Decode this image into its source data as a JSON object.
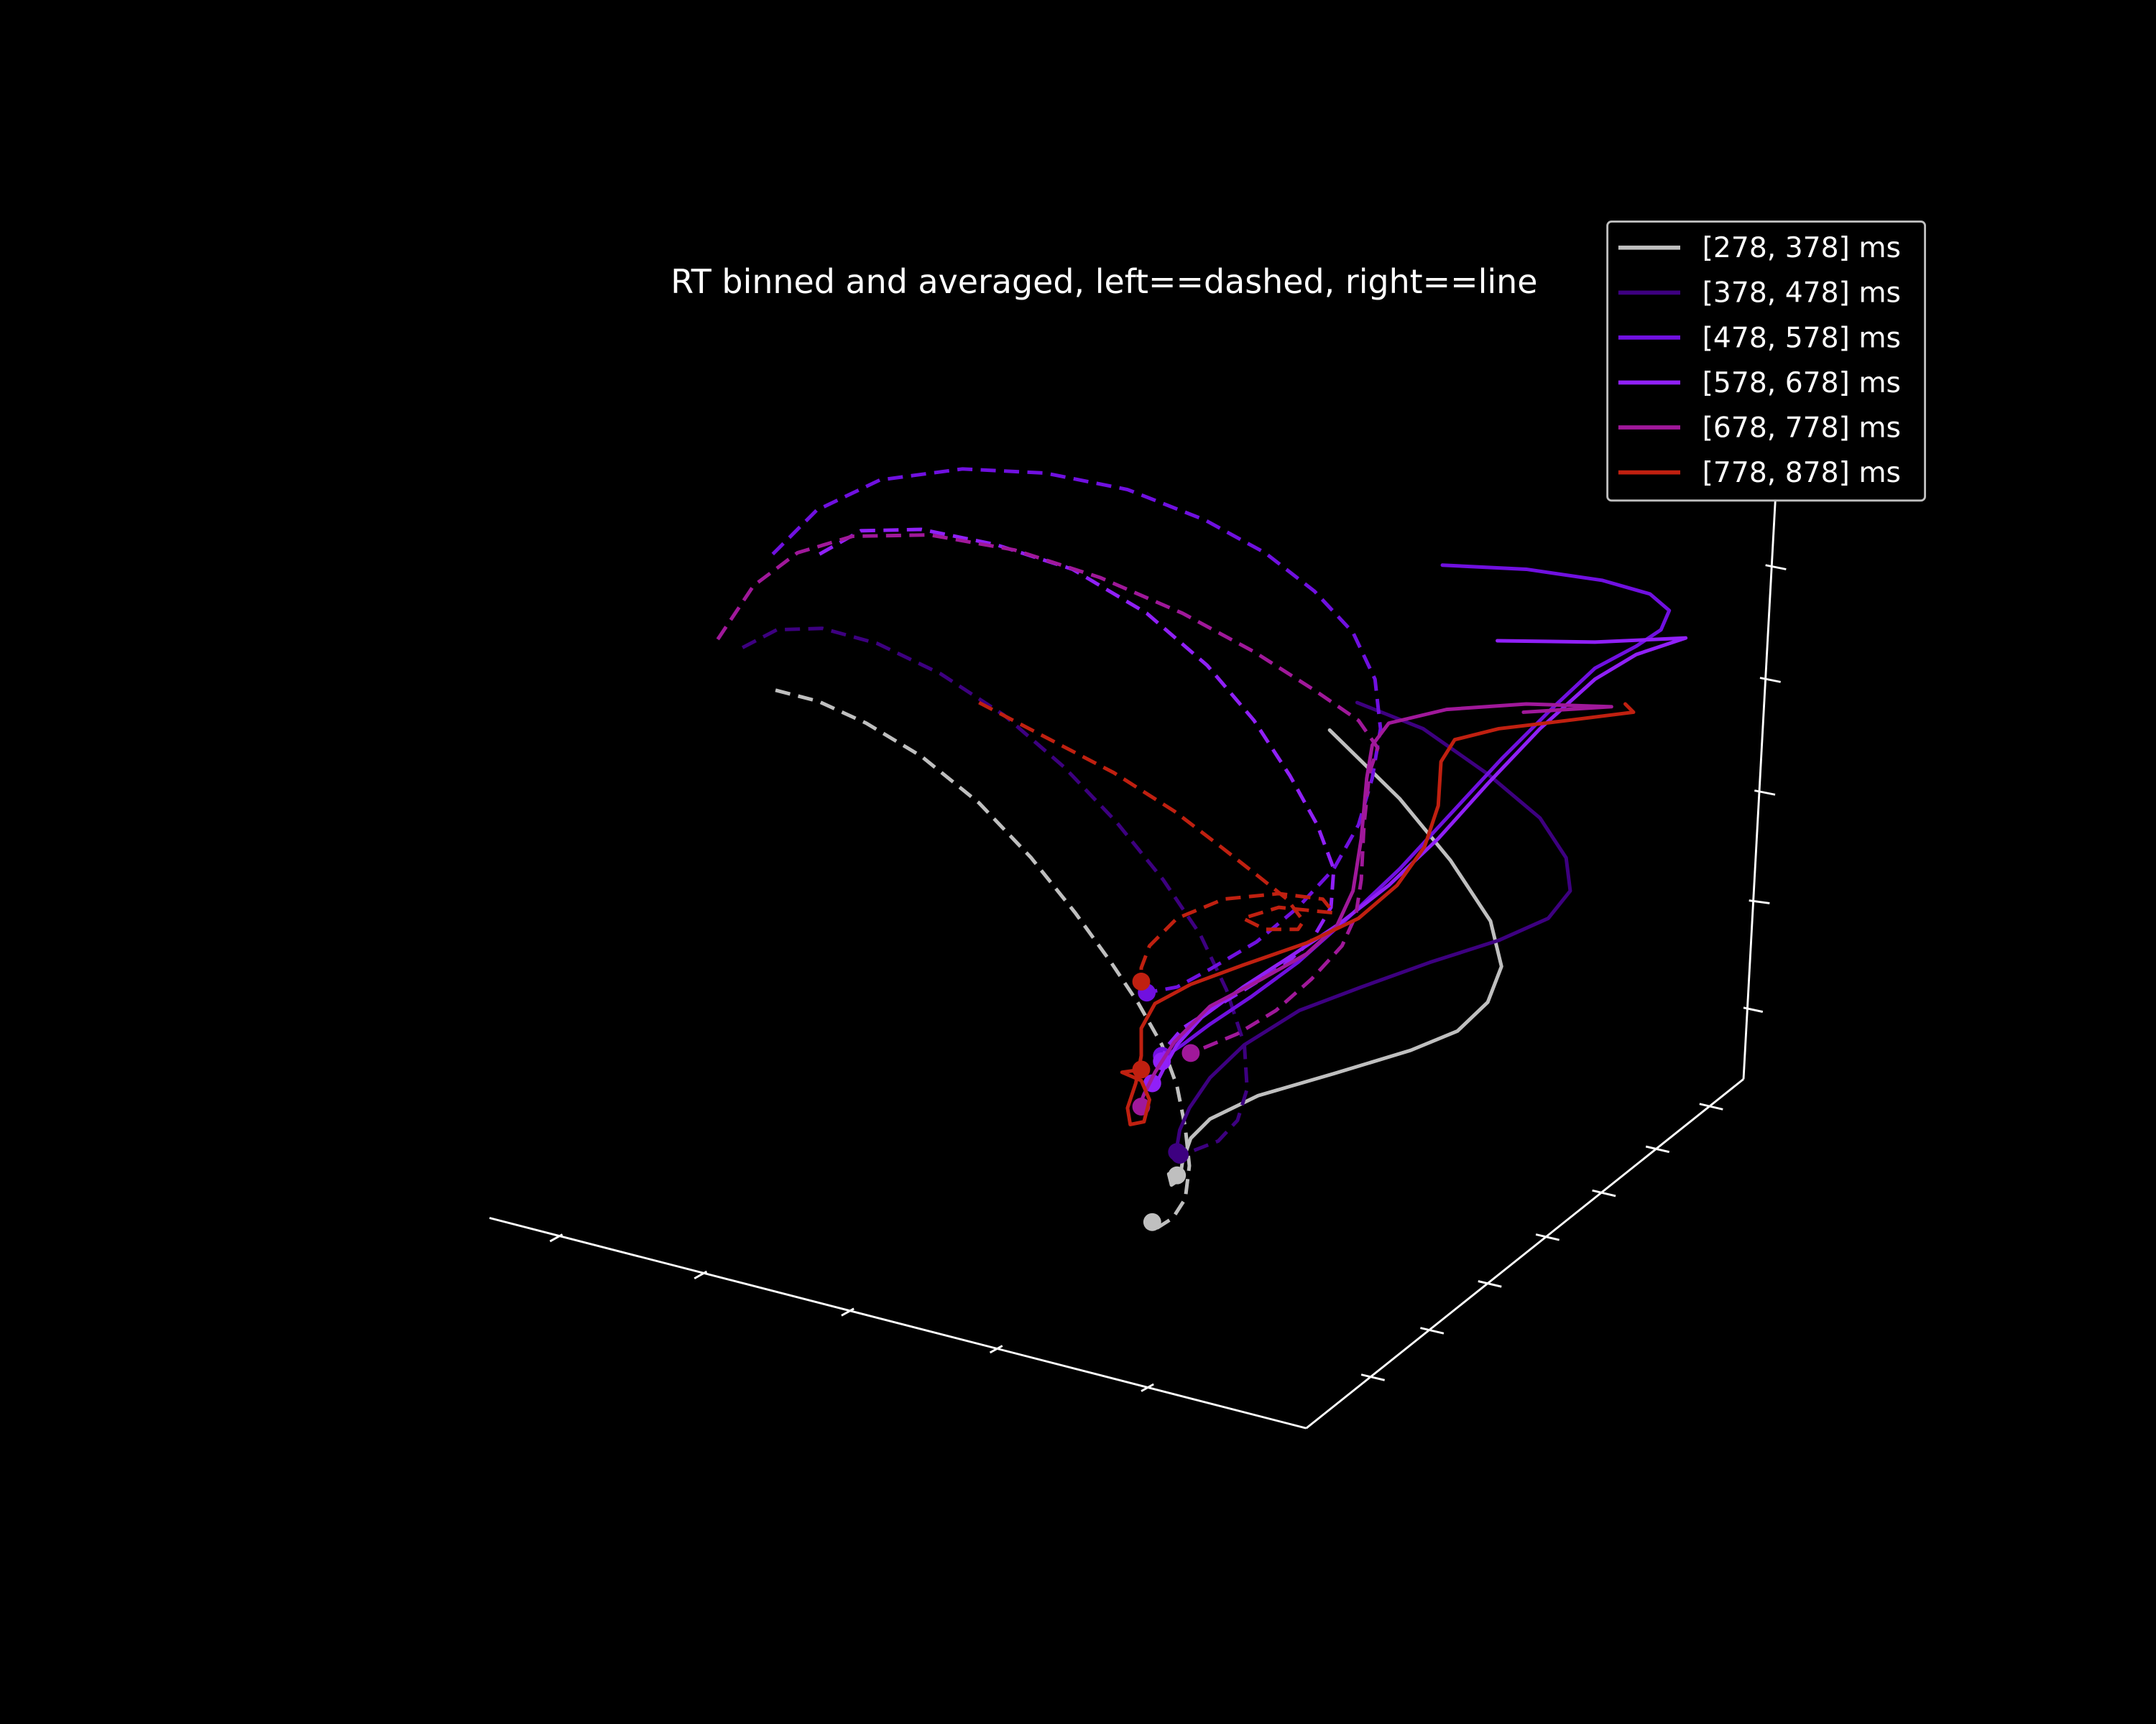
{
  "chart_data": {
    "type": "line3d",
    "title": "RT binned and averaged, left==dashed, right==line",
    "legend": {
      "position": "upper-right"
    },
    "grid": false,
    "background": "#000000",
    "series": [
      {
        "name": "[278, 378] ms",
        "color": "#bfbfbf",
        "left_dashed": [
          [
            564,
            502
          ],
          [
            595,
            510
          ],
          [
            630,
            526
          ],
          [
            670,
            550
          ],
          [
            712,
            584
          ],
          [
            750,
            624
          ],
          [
            782,
            664
          ],
          [
            808,
            700
          ],
          [
            828,
            730
          ],
          [
            845,
            760
          ],
          [
            856,
            790
          ],
          [
            862,
            820
          ],
          [
            865,
            848
          ],
          [
            862,
            872
          ],
          [
            853,
            886
          ],
          [
            842,
            893
          ],
          [
            838,
            889
          ]
        ],
        "right_line": [
          [
            967,
            531
          ],
          [
            1018,
            581
          ],
          [
            1055,
            626
          ],
          [
            1084,
            670
          ],
          [
            1092,
            703
          ],
          [
            1082,
            729
          ],
          [
            1060,
            750
          ],
          [
            1026,
            764
          ],
          [
            970,
            781
          ],
          [
            915,
            797
          ],
          [
            880,
            814
          ],
          [
            866,
            828
          ],
          [
            860,
            845
          ],
          [
            858,
            858
          ],
          [
            852,
            862
          ],
          [
            850,
            854
          ],
          [
            856,
            855
          ]
        ]
      },
      {
        "name": "[378, 478] ms",
        "color": "#3d0080",
        "left_dashed": [
          [
            540,
            471
          ],
          [
            565,
            458
          ],
          [
            598,
            457
          ],
          [
            638,
            468
          ],
          [
            684,
            490
          ],
          [
            730,
            520
          ],
          [
            774,
            558
          ],
          [
            812,
            598
          ],
          [
            846,
            640
          ],
          [
            873,
            680
          ],
          [
            892,
            720
          ],
          [
            905,
            760
          ],
          [
            907,
            792
          ],
          [
            900,
            815
          ],
          [
            886,
            830
          ],
          [
            868,
            837
          ],
          [
            856,
            838
          ]
        ],
        "right_line": [
          [
            987,
            511
          ],
          [
            1035,
            530
          ],
          [
            1082,
            563
          ],
          [
            1120,
            595
          ],
          [
            1139,
            624
          ],
          [
            1142,
            648
          ],
          [
            1126,
            668
          ],
          [
            1090,
            684
          ],
          [
            1040,
            700
          ],
          [
            990,
            718
          ],
          [
            945,
            735
          ],
          [
            905,
            760
          ],
          [
            880,
            784
          ],
          [
            865,
            806
          ],
          [
            858,
            822
          ],
          [
            856,
            834
          ],
          [
            858,
            840
          ]
        ]
      },
      {
        "name": "[478, 578] ms",
        "color": "#7010e0",
        "left_dashed": [
          [
            562,
            403
          ],
          [
            594,
            371
          ],
          [
            640,
            349
          ],
          [
            700,
            341
          ],
          [
            760,
            344
          ],
          [
            820,
            356
          ],
          [
            876,
            378
          ],
          [
            920,
            402
          ],
          [
            956,
            430
          ],
          [
            984,
            460
          ],
          [
            1000,
            494
          ],
          [
            1004,
            530
          ],
          [
            998,
            566
          ],
          [
            988,
            600
          ],
          [
            970,
            632
          ],
          [
            944,
            660
          ],
          [
            914,
            685
          ],
          [
            880,
            705
          ],
          [
            856,
            718
          ],
          [
            834,
            722
          ]
        ],
        "right_line": [
          [
            1049,
            411
          ],
          [
            1110,
            414
          ],
          [
            1165,
            422
          ],
          [
            1200,
            432
          ],
          [
            1214,
            444
          ],
          [
            1208,
            458
          ],
          [
            1190,
            470
          ],
          [
            1160,
            486
          ],
          [
            1128,
            516
          ],
          [
            1092,
            552
          ],
          [
            1055,
            592
          ],
          [
            1018,
            632
          ],
          [
            980,
            668
          ],
          [
            944,
            700
          ],
          [
            910,
            725
          ],
          [
            880,
            745
          ],
          [
            860,
            760
          ],
          [
            848,
            768
          ],
          [
            845,
            768
          ]
        ]
      },
      {
        "name": "[578, 678] ms",
        "color": "#9020f8",
        "left_dashed": [
          [
            596,
            403
          ],
          [
            626,
            386
          ],
          [
            670,
            385
          ],
          [
            724,
            396
          ],
          [
            780,
            414
          ],
          [
            834,
            446
          ],
          [
            878,
            484
          ],
          [
            912,
            524
          ],
          [
            938,
            564
          ],
          [
            958,
            600
          ],
          [
            970,
            632
          ],
          [
            968,
            660
          ],
          [
            954,
            684
          ],
          [
            934,
            702
          ],
          [
            905,
            720
          ],
          [
            880,
            735
          ],
          [
            860,
            748
          ],
          [
            848,
            762
          ],
          [
            845,
            772
          ]
        ],
        "right_line": [
          [
            1089,
            466
          ],
          [
            1160,
            467
          ],
          [
            1226,
            464
          ],
          [
            1190,
            476
          ],
          [
            1160,
            494
          ],
          [
            1120,
            530
          ],
          [
            1082,
            570
          ],
          [
            1046,
            610
          ],
          [
            1010,
            644
          ],
          [
            974,
            672
          ],
          [
            938,
            696
          ],
          [
            904,
            718
          ],
          [
            874,
            740
          ],
          [
            856,
            760
          ],
          [
            846,
            778
          ],
          [
            840,
            790
          ],
          [
            838,
            788
          ]
        ]
      },
      {
        "name": "[678, 778] ms",
        "color": "#a0189a",
        "left_dashed": [
          [
            522,
            465
          ],
          [
            548,
            426
          ],
          [
            580,
            402
          ],
          [
            620,
            390
          ],
          [
            676,
            389
          ],
          [
            738,
            400
          ],
          [
            800,
            420
          ],
          [
            860,
            446
          ],
          [
            912,
            474
          ],
          [
            956,
            502
          ],
          [
            988,
            524
          ],
          [
            1002,
            544
          ],
          [
            996,
            562
          ],
          [
            992,
            600
          ],
          [
            990,
            640
          ],
          [
            986,
            666
          ],
          [
            976,
            688
          ],
          [
            954,
            712
          ],
          [
            928,
            735
          ],
          [
            900,
            752
          ],
          [
            876,
            762
          ],
          [
            866,
            766
          ]
        ],
        "right_line": [
          [
            1108,
            518
          ],
          [
            1172,
            514
          ],
          [
            1110,
            512
          ],
          [
            1052,
            516
          ],
          [
            1010,
            526
          ],
          [
            998,
            542
          ],
          [
            994,
            566
          ],
          [
            990,
            610
          ],
          [
            984,
            648
          ],
          [
            972,
            674
          ],
          [
            950,
            694
          ],
          [
            918,
            712
          ],
          [
            880,
            732
          ],
          [
            854,
            758
          ],
          [
            840,
            780
          ],
          [
            832,
            796
          ],
          [
            828,
            806
          ],
          [
            830,
            805
          ]
        ]
      },
      {
        "name": "[778, 878] ms",
        "color": "#c02010",
        "left_dashed": [
          [
            712,
            511
          ],
          [
            760,
            536
          ],
          [
            810,
            562
          ],
          [
            854,
            590
          ],
          [
            888,
            616
          ],
          [
            916,
            638
          ],
          [
            936,
            654
          ],
          [
            948,
            670
          ],
          [
            944,
            676
          ],
          [
            920,
            676
          ],
          [
            904,
            668
          ],
          [
            930,
            660
          ],
          [
            970,
            664
          ],
          [
            962,
            654
          ],
          [
            930,
            650
          ],
          [
            890,
            654
          ],
          [
            856,
            668
          ],
          [
            836,
            688
          ],
          [
            830,
            704
          ],
          [
            830,
            714
          ]
        ],
        "right_line": [
          [
            1182,
            512
          ],
          [
            1188,
            518
          ],
          [
            1140,
            524
          ],
          [
            1090,
            530
          ],
          [
            1058,
            538
          ],
          [
            1048,
            554
          ],
          [
            1046,
            586
          ],
          [
            1036,
            616
          ],
          [
            1016,
            644
          ],
          [
            988,
            668
          ],
          [
            950,
            686
          ],
          [
            904,
            702
          ],
          [
            866,
            716
          ],
          [
            840,
            730
          ],
          [
            830,
            748
          ],
          [
            830,
            768
          ],
          [
            826,
            788
          ],
          [
            820,
            806
          ],
          [
            822,
            818
          ],
          [
            832,
            816
          ],
          [
            836,
            800
          ],
          [
            830,
            786
          ],
          [
            816,
            780
          ],
          [
            830,
            778
          ]
        ]
      }
    ]
  }
}
